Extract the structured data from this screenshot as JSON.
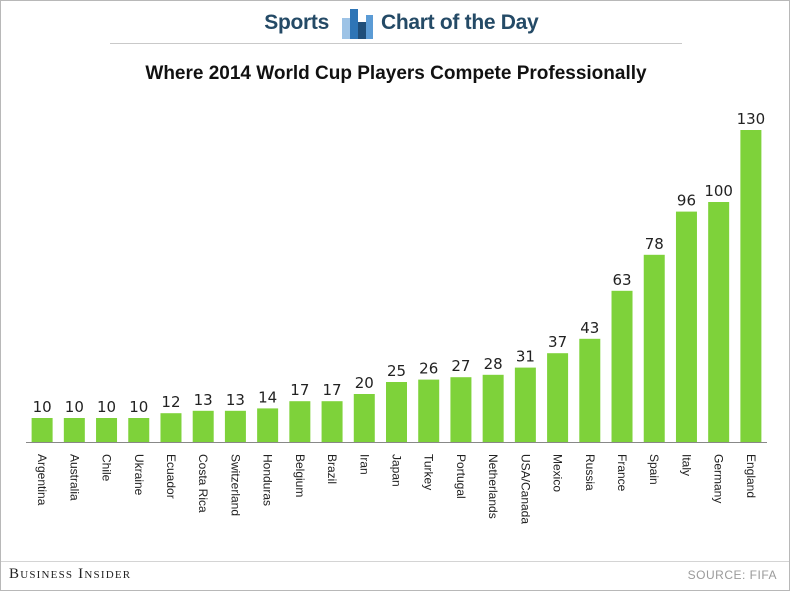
{
  "header": {
    "left_label": "Sports",
    "right_label": "Chart of the Day",
    "icon": "bar-chart-icon",
    "icon_colors": [
      "#9dc3e6",
      "#2e75b6",
      "#1f4e79",
      "#5b9bd5"
    ]
  },
  "footer": {
    "brand": "Business Insider",
    "source": "SOURCE: FIFA"
  },
  "colors": {
    "bar": "#7ed23a",
    "axis": "#888888",
    "text": "#222222"
  },
  "chart_data": {
    "type": "bar",
    "title": "Where 2014 World Cup Players Compete Professionally",
    "xlabel": "",
    "ylabel": "",
    "ylim": [
      0,
      130
    ],
    "grid": false,
    "legend": "none",
    "categories": [
      "Argentina",
      "Australia",
      "Chile",
      "Ukraine",
      "Ecuador",
      "Costa Rica",
      "Switzerland",
      "Honduras",
      "Belgium",
      "Brazil",
      "Iran",
      "Japan",
      "Turkey",
      "Portugal",
      "Netherlands",
      "USA/Canada",
      "Mexico",
      "Russia",
      "France",
      "Spain",
      "Italy",
      "Germany",
      "England"
    ],
    "values": [
      10,
      10,
      10,
      10,
      12,
      13,
      13,
      14,
      17,
      17,
      20,
      25,
      26,
      27,
      28,
      31,
      37,
      43,
      63,
      78,
      96,
      100,
      130
    ]
  }
}
